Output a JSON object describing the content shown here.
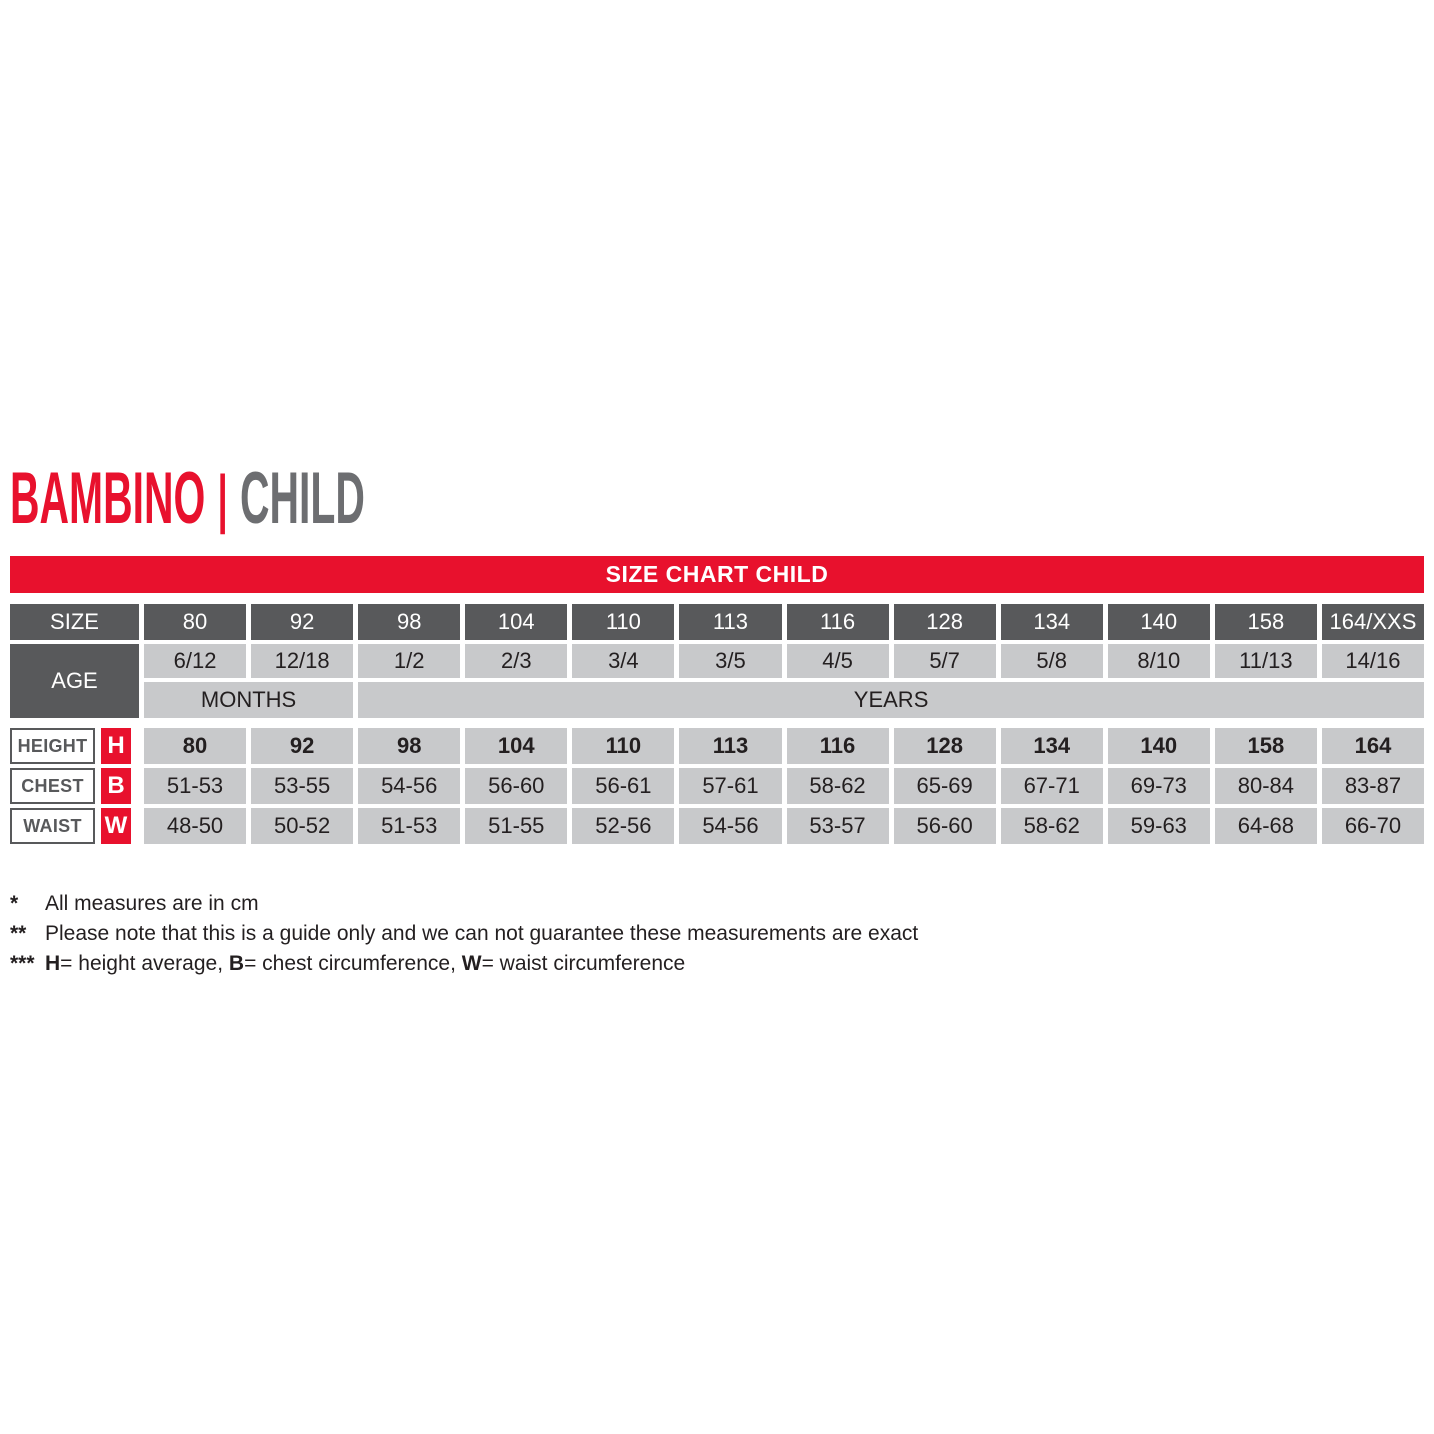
{
  "title": {
    "primary": "BAMBINO",
    "separator": "|",
    "secondary": "CHILD"
  },
  "banner": {
    "label": "SIZE CHART CHILD"
  },
  "colors": {
    "red": "#e8112d",
    "dark_gray": "#58595b",
    "light_gray": "#c8c9cb",
    "title_gray": "#6d6e71",
    "text_dark": "#231f20"
  },
  "size_chart": {
    "size_header": "SIZE",
    "sizes": [
      "80",
      "92",
      "98",
      "104",
      "110",
      "113",
      "116",
      "128",
      "134",
      "140",
      "158",
      "164/XXS"
    ],
    "age_header": "AGE",
    "ages": [
      "6/12",
      "12/18",
      "1/2",
      "2/3",
      "3/4",
      "3/5",
      "4/5",
      "5/7",
      "5/8",
      "8/10",
      "11/13",
      "14/16"
    ],
    "age_units": {
      "months": "MONTHS",
      "years": "YEARS"
    },
    "measure_rows": [
      {
        "label": "HEIGHT",
        "letter": "H",
        "values": [
          "80",
          "92",
          "98",
          "104",
          "110",
          "113",
          "116",
          "128",
          "134",
          "140",
          "158",
          "164"
        ]
      },
      {
        "label": "CHEST",
        "letter": "B",
        "values": [
          "51-53",
          "53-55",
          "54-56",
          "56-60",
          "56-61",
          "57-61",
          "58-62",
          "65-69",
          "67-71",
          "69-73",
          "80-84",
          "83-87"
        ]
      },
      {
        "label": "WAIST",
        "letter": "W",
        "values": [
          "48-50",
          "50-52",
          "51-53",
          "51-55",
          "52-56",
          "54-56",
          "53-57",
          "56-60",
          "58-62",
          "59-63",
          "64-68",
          "66-70"
        ]
      }
    ]
  },
  "footnotes": [
    {
      "marker": "*",
      "text": "All measures are in cm"
    },
    {
      "marker": "**",
      "text": "Please note that this is a guide only and we can not guarantee these measurements are exact"
    },
    {
      "marker": "***",
      "segments": [
        {
          "b": "H"
        },
        {
          "t": "= height average, "
        },
        {
          "b": "B"
        },
        {
          "t": "= chest circumference, "
        },
        {
          "b": "W"
        },
        {
          "t": "= waist circumference"
        }
      ]
    }
  ]
}
